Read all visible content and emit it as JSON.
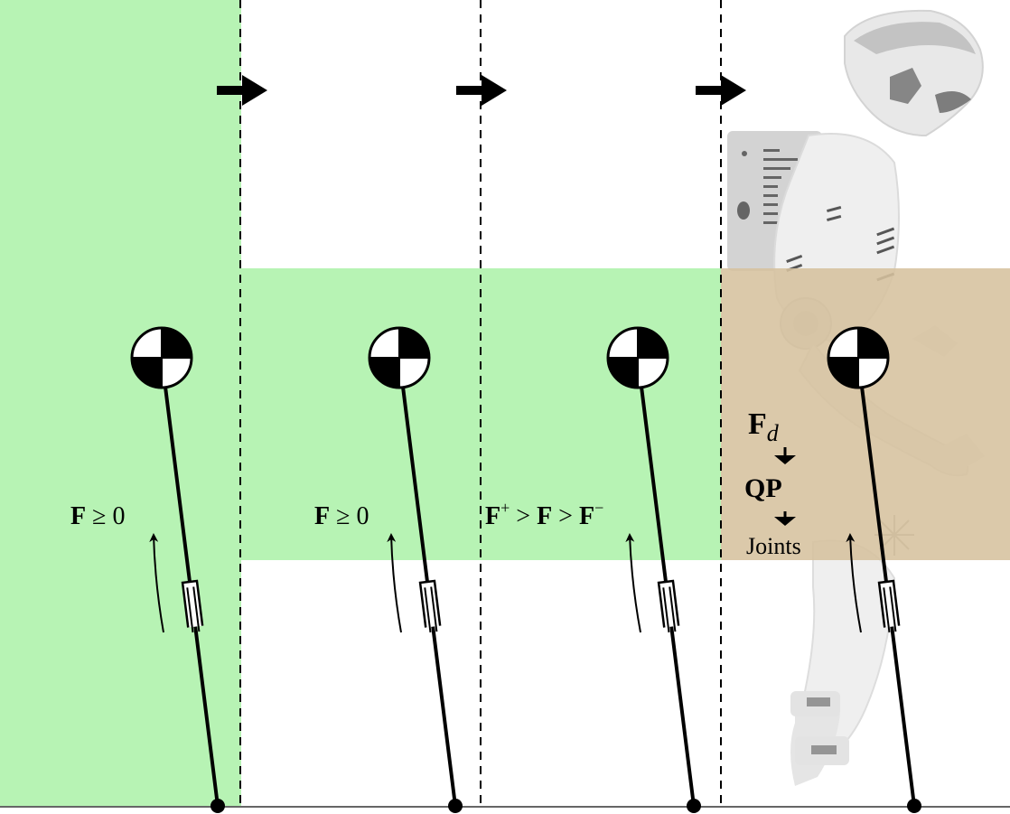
{
  "colors": {
    "green": "#b7f3b4",
    "tan": "#d6c19e",
    "ink": "#000000",
    "ground": "#666666"
  },
  "icons": {
    "phase_arrow": "right-arrow-icon",
    "com_marker": "center-of-mass-icon",
    "robot": "humanoid-robot-icon"
  },
  "phases": [
    {
      "constraint": {
        "bold": "F",
        "rest": " ≥ 0"
      }
    },
    {
      "constraint": {
        "bold": "F",
        "rest": " ≥ 0"
      }
    },
    {
      "constraint": {
        "a": "F",
        "a_sup": "+",
        "b": " > ",
        "c": "F",
        "d": " > ",
        "e": "F",
        "e_sup": "−"
      }
    },
    {
      "pipeline": {
        "fd_main": "F",
        "fd_sub": "d",
        "qp": "QP",
        "joints": "Joints"
      }
    }
  ]
}
